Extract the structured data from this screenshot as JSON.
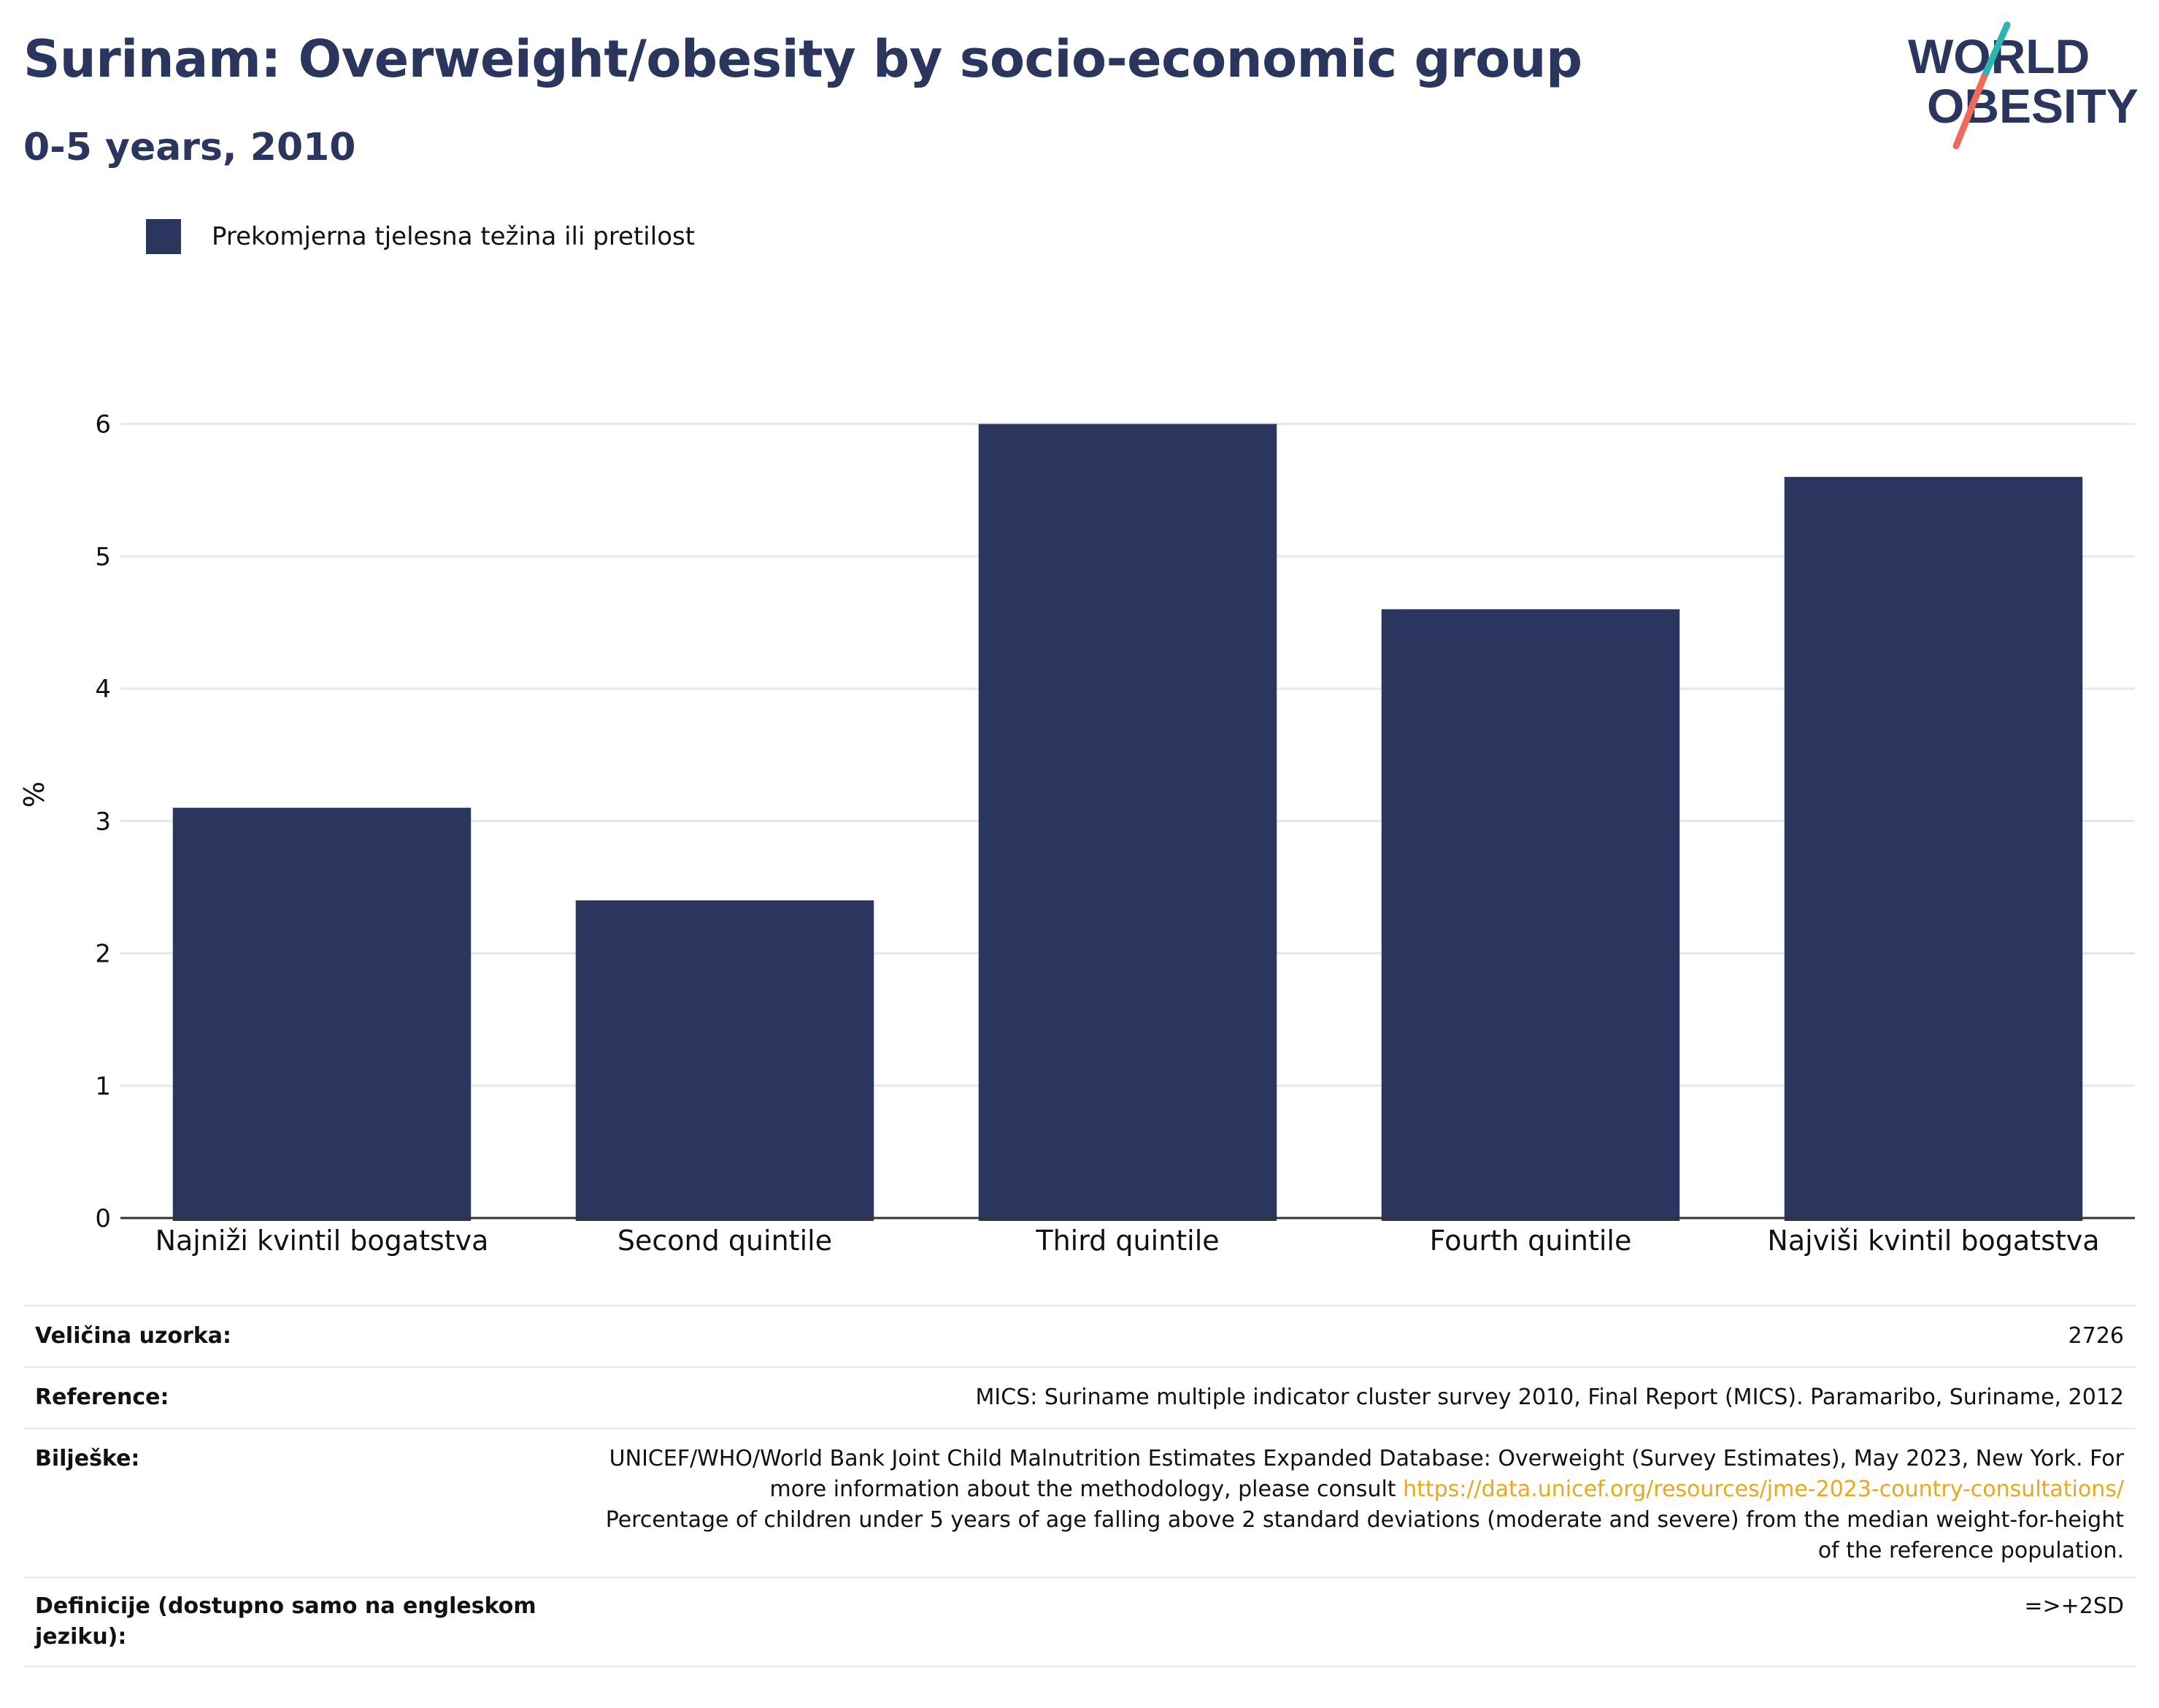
{
  "header": {
    "title": "Surinam: Overweight/obesity by socio-economic group",
    "subtitle": "0-5 years, 2010"
  },
  "logo": {
    "line1": "WORLD",
    "line2": "OBESITY"
  },
  "legend": {
    "label": "Prekomjerna tjelesna težina ili pretilost"
  },
  "colors": {
    "bar": "#2b365f",
    "title": "#2b365f",
    "grid": "#e6e8f0",
    "axis": "#333333",
    "link": "#e8a91b",
    "logo_teal": "#2bb6b2",
    "logo_coral": "#ef6a5a"
  },
  "chart_data": {
    "type": "bar",
    "categories": [
      "Najniži kvintil bogatstva",
      "Second quintile",
      "Third quintile",
      "Fourth quintile",
      "Najviši kvintil bogatstva"
    ],
    "series": [
      {
        "name": "Prekomjerna tjelesna težina ili pretilost",
        "values": [
          3.1,
          2.4,
          6.0,
          4.6,
          5.6
        ]
      }
    ],
    "ylabel": "%",
    "xlabel": "",
    "ylim": [
      0,
      6.5
    ],
    "yticks": [
      0,
      1,
      2,
      3,
      4,
      5,
      6
    ],
    "grid": true,
    "legend_position": "top-left"
  },
  "info": {
    "sample": {
      "label": "Veličina uzorka:",
      "value": "2726"
    },
    "reference": {
      "label": "Reference:",
      "value": "MICS: Suriname multiple indicator cluster survey 2010, Final Report (MICS). Paramaribo, Suriname, 2012"
    },
    "notes": {
      "label": "Bilješke:",
      "text1": "UNICEF/WHO/World Bank Joint Child Malnutrition Estimates Expanded Database: Overweight (Survey Estimates), May 2023, New York. For more information about the methodology, please consult ",
      "link": "https://data.unicef.org/resources/jme-2023-country-consultations/",
      "text2": "Percentage of children under 5 years of age falling above 2 standard deviations (moderate and severe) from the median weight-for-height of the reference population."
    },
    "definitions": {
      "label": "Definicije (dostupno samo na engleskom jeziku):",
      "value": "=>+2SD"
    }
  }
}
